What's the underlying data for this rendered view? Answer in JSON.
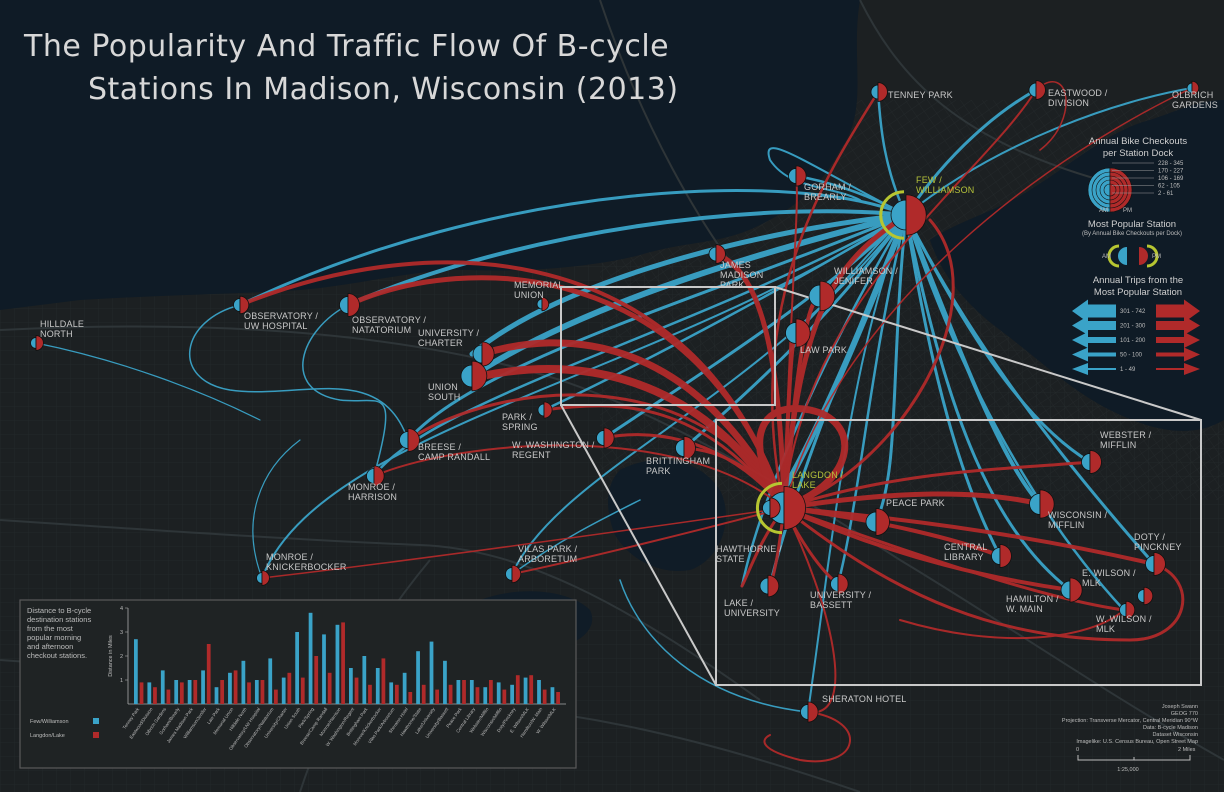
{
  "title": {
    "line1": "The Popularity And Traffic Flow Of B-cycle",
    "line2": "Stations In Madison, Wisconsin (2013)"
  },
  "colors": {
    "am": "#3aa3c8",
    "pm": "#b02a2a",
    "highlight": "#b7c631",
    "background": "#151819",
    "water": "#0e1a26"
  },
  "stations": [
    {
      "id": "tenney",
      "label": [
        "TENNEY PARK"
      ],
      "size": 8
    },
    {
      "id": "eastwood",
      "label": [
        "EASTWOOD /",
        "DIVISION"
      ],
      "size": 8
    },
    {
      "id": "olbrich",
      "label": [
        "OLBRICH",
        "GARDENS"
      ],
      "size": 4
    },
    {
      "id": "gorham",
      "label": [
        "GORHAM /",
        "BREARLY"
      ],
      "size": 9
    },
    {
      "id": "few",
      "label": [
        "FEW /",
        "WILLIAMSON"
      ],
      "size": 24,
      "highlight": true
    },
    {
      "id": "james",
      "label": [
        "JAMES",
        "MADISON",
        "PARK"
      ],
      "size": 8
    },
    {
      "id": "williamson",
      "label": [
        "WILLIAMSON /",
        "JENIFER"
      ],
      "size": 16
    },
    {
      "id": "lawpark",
      "label": [
        "LAW PARK"
      ],
      "size": 15
    },
    {
      "id": "memorial",
      "label": [
        "MEMORIAL",
        "UNION"
      ],
      "size": 4
    },
    {
      "id": "hilldale",
      "label": [
        "HILLDALE",
        "NORTH"
      ],
      "size": 5
    },
    {
      "id": "obs_uw",
      "label": [
        "OBSERVATORY /",
        "UW HOSPITAL"
      ],
      "size": 7
    },
    {
      "id": "obs_nat",
      "label": [
        "OBSERVATORY /",
        "NATATORIUM"
      ],
      "size": 11
    },
    {
      "id": "charter",
      "label": [
        "UNIVERSITY /",
        "CHARTER"
      ],
      "size": 12
    },
    {
      "id": "union_south",
      "label": [
        "UNION",
        "SOUTH"
      ],
      "size": 16
    },
    {
      "id": "park_spring",
      "label": [
        "PARK /",
        "SPRING"
      ],
      "size": 6
    },
    {
      "id": "breese",
      "label": [
        "BREESE /",
        "CAMP RANDALL"
      ],
      "size": 11
    },
    {
      "id": "monroe_harrison",
      "label": [
        "MONROE /",
        "HARRISON"
      ],
      "size": 9
    },
    {
      "id": "washington",
      "label": [
        "W. WASHINGTON /",
        "REGENT"
      ],
      "size": 9
    },
    {
      "id": "brittingham",
      "label": [
        "BRITTINGHAM",
        "PARK"
      ],
      "size": 11
    },
    {
      "id": "monroe_knick",
      "label": [
        "MONROE /",
        "KNICKERBOCKER"
      ],
      "size": 5
    },
    {
      "id": "vilas",
      "label": [
        "VILAS PARK /",
        "ARBORETUM"
      ],
      "size": 7
    },
    {
      "id": "sheraton",
      "label": [
        "SHERATON HOTEL"
      ],
      "size": 9
    },
    {
      "id": "langdon",
      "label": [
        "LANGDON /",
        "LAKE"
      ],
      "size": 26,
      "highlight": true
    },
    {
      "id": "hawthorne",
      "label": [
        "HAWTHORNE /",
        "STATE"
      ],
      "size": 9
    },
    {
      "id": "lake_univ",
      "label": [
        "LAKE /",
        "UNIVERSITY"
      ],
      "size": 10
    },
    {
      "id": "univ_bassett",
      "label": [
        "UNIVERSITY /",
        "BASSETT"
      ],
      "size": 9
    },
    {
      "id": "peace",
      "label": [
        "PEACE PARK"
      ],
      "size": 14
    },
    {
      "id": "central",
      "label": [
        "CENTRAL",
        "LIBRARY"
      ],
      "size": 11
    },
    {
      "id": "webster",
      "label": [
        "WEBSTER /",
        "MIFFLIN"
      ],
      "size": 11
    },
    {
      "id": "wis_mifflin",
      "label": [
        "WISCONSIN /",
        "MIFFLIN"
      ],
      "size": 15
    },
    {
      "id": "doty",
      "label": [
        "DOTY /",
        "PINCKNEY"
      ],
      "size": 11
    },
    {
      "id": "e_wilson",
      "label": [
        "E. WILSON /",
        "MLK"
      ],
      "size": 7
    },
    {
      "id": "hamilton",
      "label": [
        "HAMILTON /",
        "W. MAIN"
      ],
      "size": 12
    },
    {
      "id": "w_wilson",
      "label": [
        "W. WILSON /",
        "MLK"
      ],
      "size": 7
    }
  ],
  "legend": {
    "checkouts_title": [
      "Annual Bike Checkouts",
      "per Station Dock"
    ],
    "checkout_classes": [
      "228 - 345",
      "170 - 227",
      "106 - 169",
      "62 - 105",
      "2 - 61"
    ],
    "am": "AM",
    "pm": "PM",
    "popular_title": "Most Popular Station",
    "popular_sub": "(By Annual Bike Checkouts per Dock)",
    "trips_title": [
      "Annual Trips from the",
      "Most Popular Station"
    ],
    "trip_classes": [
      "301 - 742",
      "201 - 300",
      "101 - 200",
      "50 - 100",
      "1 - 49"
    ]
  },
  "chart_panel": {
    "description": [
      "Distance to B-cycle",
      "destination stations",
      "from the most",
      "popular morning",
      "and afternoon",
      "checkout stations."
    ],
    "legend": [
      "Few/Williamson",
      "Langdon/Lake"
    ]
  },
  "chart_data": {
    "type": "bar",
    "ylabel": "Distance in Miles",
    "ylim": [
      0,
      4
    ],
    "yticks": [
      1,
      2,
      3,
      4
    ],
    "categories": [
      "Tenney Park",
      "Eastwood/Division",
      "Olbrich Gardens",
      "Gorham/Brearly",
      "James Madison Park",
      "Williamson/Jenifer",
      "Law Park",
      "Memorial Union",
      "Hilldale North",
      "Observatory/UW Hospital",
      "Observatory/Natatorium",
      "University/Charter",
      "Union South",
      "Park/Spring",
      "Breese/Camp Randall",
      "Monroe/Harrison",
      "W. Washington/Regent",
      "Brittingham Park",
      "Monroe/Knickerbocker",
      "Vilas Park/Arboretum",
      "Sheraton Hotel",
      "Hawthorne/State",
      "Lake/University",
      "University/Bassett",
      "Peace Park",
      "Central Library",
      "Webster/Mifflin",
      "Wisconsin/Mifflin",
      "Doty/Pinckney",
      "E. Wilson/MLK",
      "Hamilton/W. Main",
      "W. Wilson/MLK"
    ],
    "series": [
      {
        "name": "Few/Williamson",
        "values": [
          2.7,
          0.9,
          1.4,
          1.0,
          1.0,
          1.4,
          0.7,
          1.3,
          1.8,
          1.0,
          1.9,
          1.1,
          3.0,
          3.8,
          2.9,
          3.3,
          1.5,
          2.0,
          1.5,
          0.9,
          1.3,
          2.2,
          2.6,
          1.8,
          1.0,
          1.0,
          0.7,
          0.9,
          0.8,
          1.1,
          1.0,
          0.7
        ]
      },
      {
        "name": "Langdon/Lake",
        "values": [
          0.9,
          0.7,
          0.6,
          0.9,
          1.0,
          2.5,
          1.0,
          1.4,
          0.9,
          1.0,
          0.6,
          1.3,
          1.1,
          2.0,
          1.3,
          3.4,
          1.1,
          0.8,
          1.9,
          0.8,
          0.5,
          0.8,
          0.6,
          0.8,
          1.0,
          0.7,
          1.0,
          0.6,
          1.2,
          1.2,
          0.6,
          0.5
        ]
      }
    ]
  },
  "credits": {
    "author": [
      "Joseph Swann",
      "GEOG 770"
    ],
    "projection": "Projection: Transverse Mercator, Central Meridian 90°W",
    "data": [
      "Data: B-cycle Madison",
      "Dataset Wisconsin"
    ],
    "imagery": "Imagelike: U.S. Census Bureau, Open Street Map",
    "scale_left": "0",
    "scale_right": "2 Miles",
    "ratio": "1:25,000"
  }
}
